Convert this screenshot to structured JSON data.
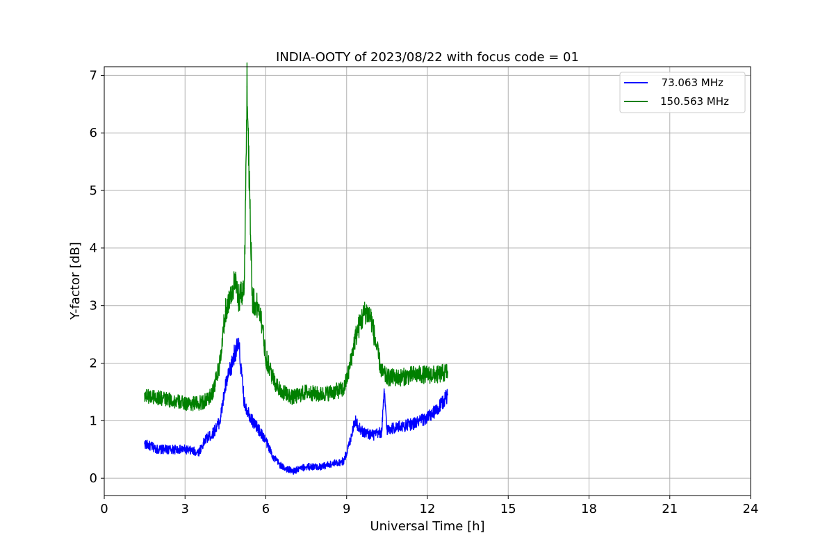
{
  "chart_data": {
    "type": "line",
    "title": "INDIA-OOTY of 2023/08/22 with focus code = 01",
    "xlabel": "Universal Time [h]",
    "ylabel": "Y-factor [dB]",
    "xlim": [
      0,
      24
    ],
    "ylim": [
      -0.3,
      7.15
    ],
    "xticks": [
      "0",
      "3",
      "6",
      "9",
      "12",
      "15",
      "18",
      "21",
      "24"
    ],
    "yticks": [
      "0",
      "1",
      "2",
      "3",
      "4",
      "5",
      "6",
      "7"
    ],
    "grid": true,
    "legend_position": "top-right",
    "series": [
      {
        "name": "  73.063 MHz",
        "color": "#0000ff",
        "x": [
          1.5,
          2.0,
          2.5,
          3.0,
          3.5,
          3.8,
          4.0,
          4.3,
          4.5,
          4.7,
          4.85,
          5.0,
          5.2,
          5.5,
          5.8,
          6.0,
          6.3,
          6.6,
          7.0,
          7.5,
          8.0,
          8.5,
          8.9,
          9.1,
          9.3,
          9.6,
          10.0,
          10.3,
          10.4,
          10.5,
          11.0,
          11.5,
          12.0,
          12.4,
          12.75
        ],
        "y": [
          0.6,
          0.5,
          0.5,
          0.5,
          0.45,
          0.7,
          0.75,
          1.0,
          1.6,
          1.9,
          2.2,
          2.3,
          1.3,
          1.0,
          0.8,
          0.65,
          0.35,
          0.2,
          0.12,
          0.2,
          0.2,
          0.25,
          0.3,
          0.6,
          1.0,
          0.8,
          0.75,
          0.8,
          1.5,
          0.85,
          0.9,
          0.95,
          1.05,
          1.2,
          1.45
        ]
      },
      {
        "name": "150.563 MHz",
        "color": "#008000",
        "x": [
          1.5,
          2.0,
          2.5,
          3.0,
          3.5,
          3.8,
          4.0,
          4.3,
          4.5,
          4.7,
          4.85,
          5.0,
          5.2,
          5.3,
          5.5,
          5.8,
          6.0,
          6.3,
          6.6,
          7.0,
          7.5,
          8.0,
          8.5,
          8.9,
          9.1,
          9.3,
          9.5,
          9.7,
          9.9,
          10.1,
          10.3,
          10.5,
          11.0,
          11.5,
          12.0,
          12.4,
          12.75
        ],
        "y": [
          1.45,
          1.4,
          1.35,
          1.3,
          1.3,
          1.35,
          1.45,
          2.0,
          2.9,
          3.2,
          3.4,
          3.1,
          3.3,
          6.8,
          3.1,
          2.9,
          2.1,
          1.7,
          1.5,
          1.4,
          1.5,
          1.45,
          1.5,
          1.55,
          1.9,
          2.4,
          2.7,
          2.9,
          2.8,
          2.3,
          1.85,
          1.75,
          1.75,
          1.8,
          1.8,
          1.8,
          1.85
        ]
      }
    ]
  }
}
